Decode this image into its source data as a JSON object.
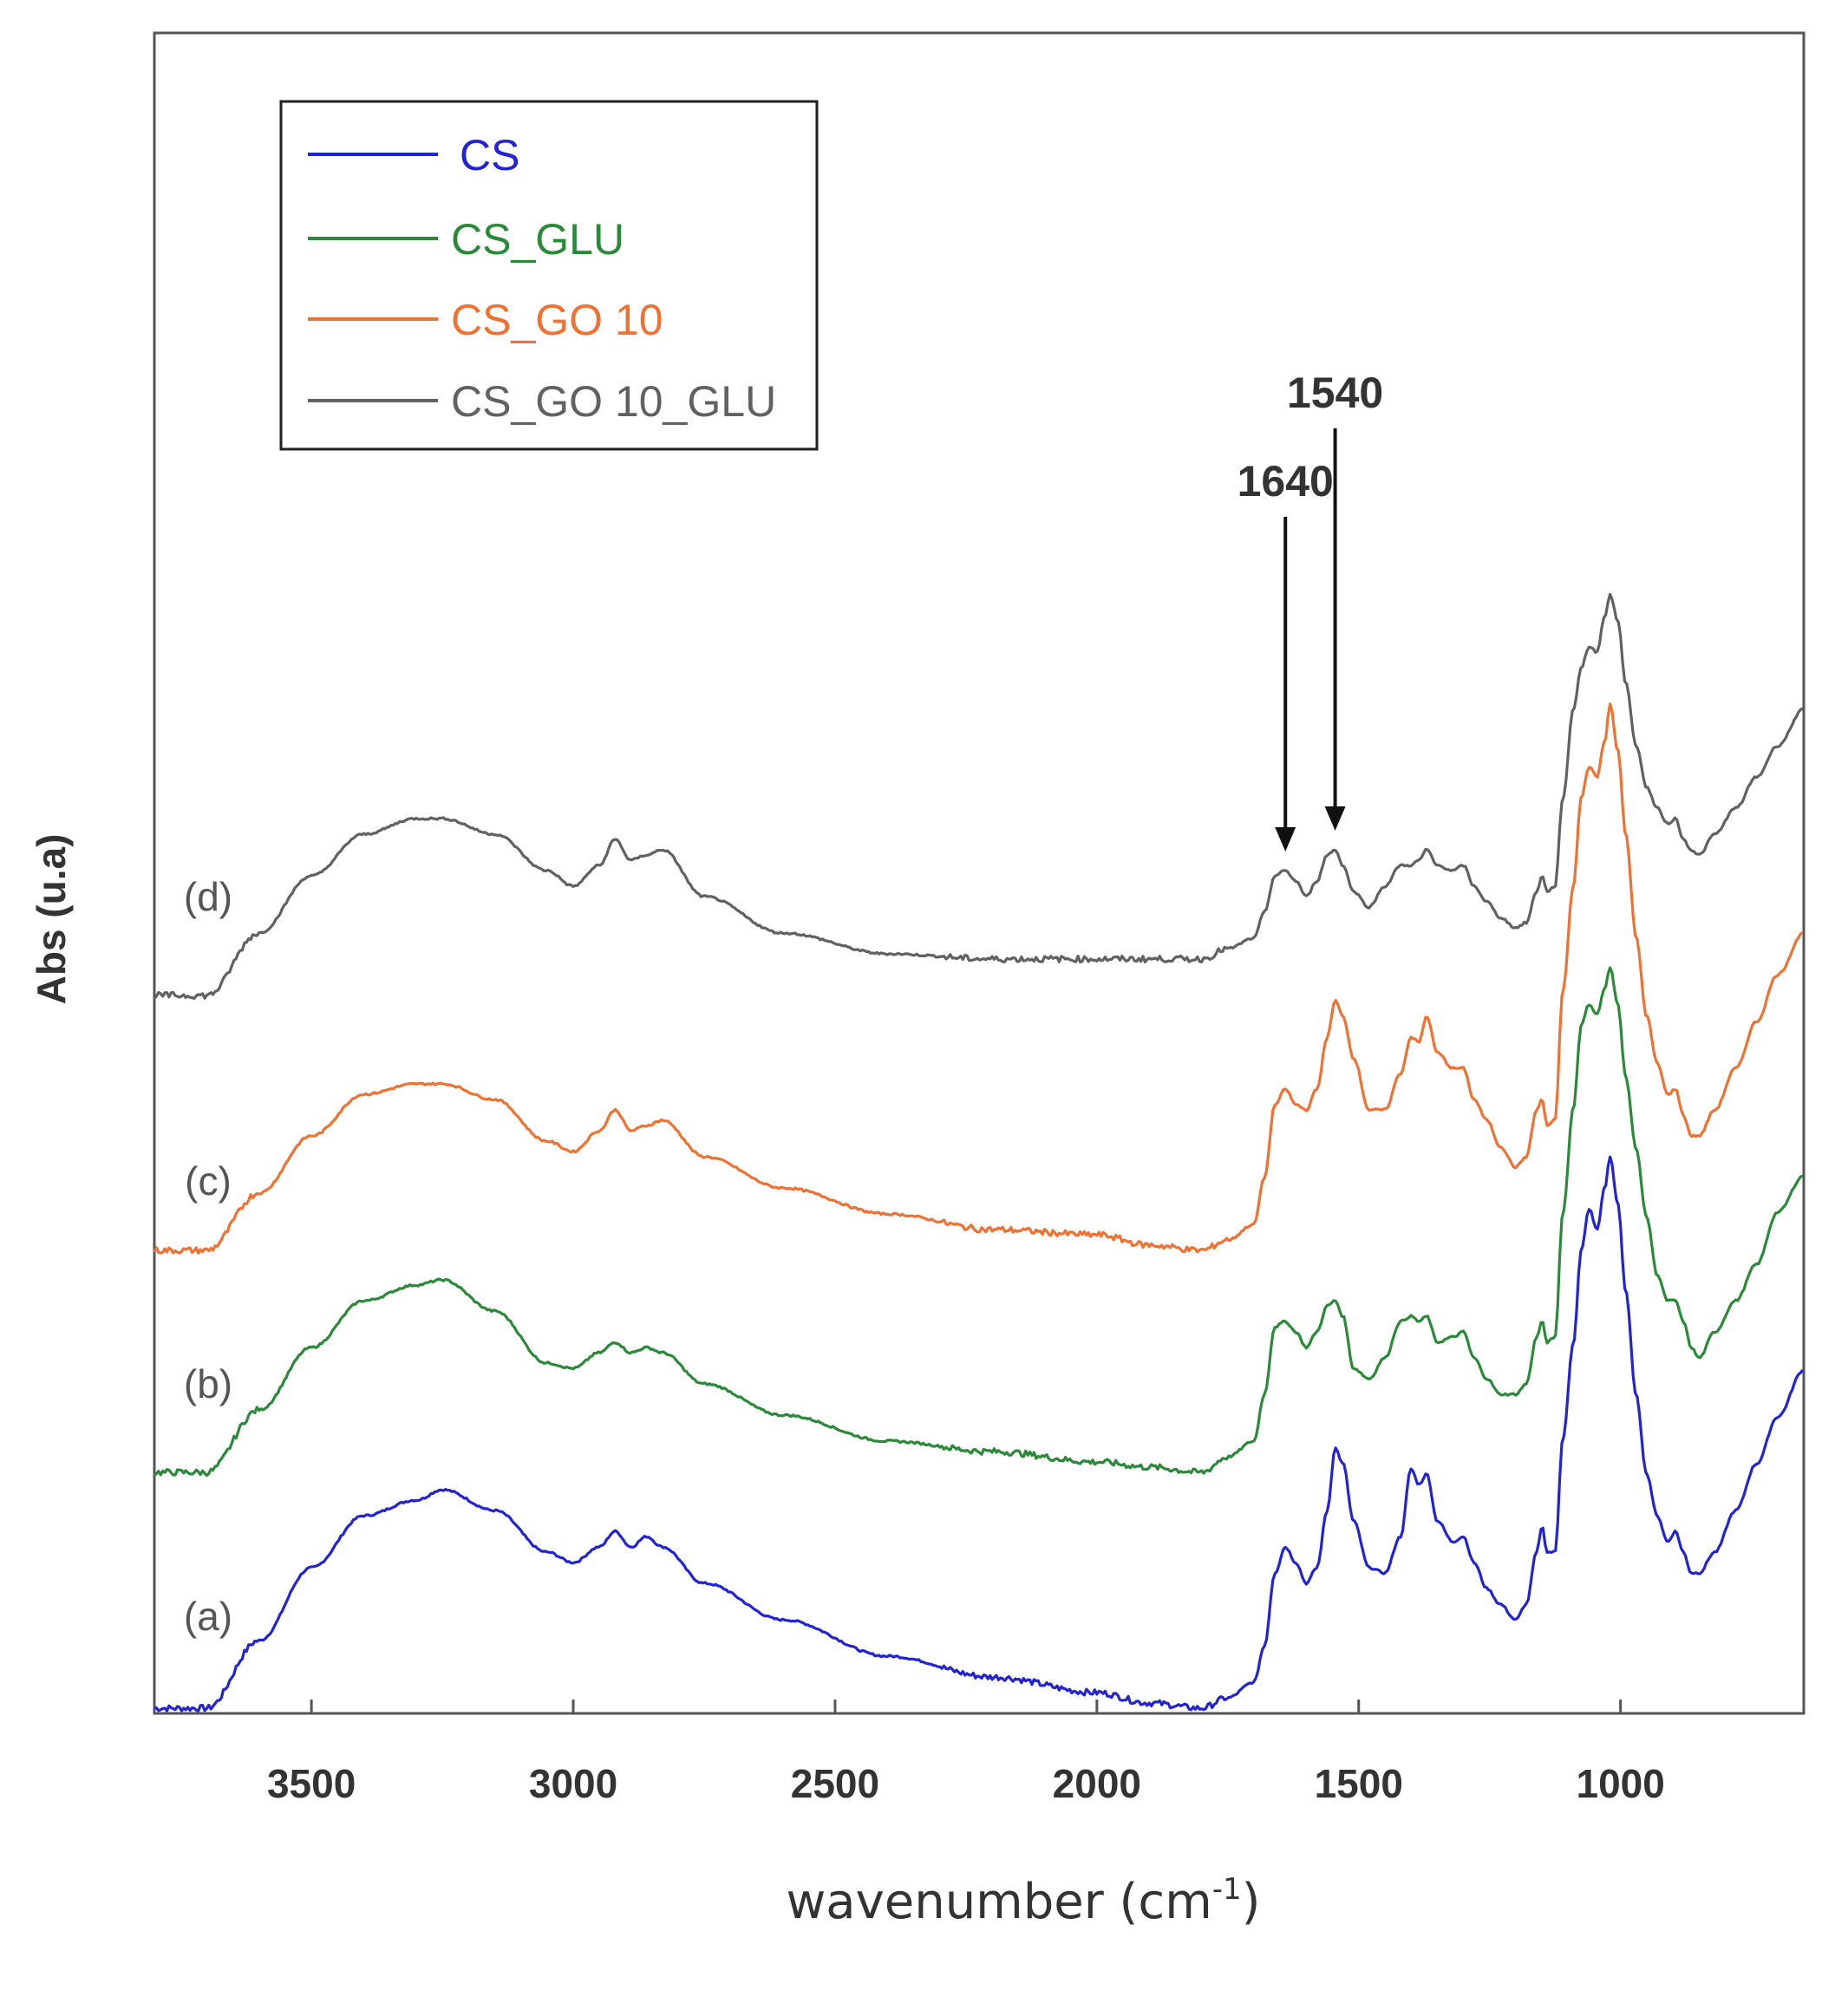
{
  "chart_data": {
    "type": "line",
    "title": "",
    "xlabel": "wavenumber (cm",
    "xlabel_sup": "-1",
    "xlabel_tail": ")",
    "ylabel": "Abs (u.a)",
    "xlim": [
      3800,
      650
    ],
    "x_reversed": true,
    "grid": false,
    "legend_position": "top-left",
    "x_ticks": [
      "3500",
      "3000",
      "2500",
      "2000",
      "1500",
      "1000"
    ],
    "x_tick_values": [
      3500,
      3000,
      2500,
      2000,
      1500,
      1000
    ],
    "series": [
      {
        "name": "CS",
        "label": "(a)",
        "color": "#2323d6",
        "offset": 0,
        "points": [
          [
            3800,
            0.0
          ],
          [
            3700,
            0.0
          ],
          [
            3600,
            0.13
          ],
          [
            3500,
            0.27
          ],
          [
            3400,
            0.37
          ],
          [
            3300,
            0.4
          ],
          [
            3250,
            0.42
          ],
          [
            3150,
            0.38
          ],
          [
            3050,
            0.3
          ],
          [
            3000,
            0.28
          ],
          [
            2950,
            0.31
          ],
          [
            2920,
            0.34
          ],
          [
            2890,
            0.31
          ],
          [
            2860,
            0.33
          ],
          [
            2830,
            0.31
          ],
          [
            2750,
            0.24
          ],
          [
            2600,
            0.17
          ],
          [
            2400,
            0.1
          ],
          [
            2200,
            0.06
          ],
          [
            2000,
            0.03
          ],
          [
            1900,
            0.01
          ],
          [
            1800,
            0.0
          ],
          [
            1750,
            0.02
          ],
          [
            1700,
            0.05
          ],
          [
            1680,
            0.12
          ],
          [
            1660,
            0.26
          ],
          [
            1640,
            0.31
          ],
          [
            1620,
            0.28
          ],
          [
            1600,
            0.24
          ],
          [
            1580,
            0.27
          ],
          [
            1560,
            0.38
          ],
          [
            1545,
            0.5
          ],
          [
            1530,
            0.47
          ],
          [
            1510,
            0.36
          ],
          [
            1480,
            0.27
          ],
          [
            1450,
            0.26
          ],
          [
            1420,
            0.33
          ],
          [
            1400,
            0.46
          ],
          [
            1385,
            0.43
          ],
          [
            1370,
            0.45
          ],
          [
            1350,
            0.36
          ],
          [
            1320,
            0.32
          ],
          [
            1300,
            0.33
          ],
          [
            1280,
            0.28
          ],
          [
            1255,
            0.23
          ],
          [
            1230,
            0.2
          ],
          [
            1200,
            0.17
          ],
          [
            1180,
            0.2
          ],
          [
            1160,
            0.3
          ],
          [
            1150,
            0.35
          ],
          [
            1140,
            0.3
          ],
          [
            1125,
            0.3
          ],
          [
            1110,
            0.52
          ],
          [
            1090,
            0.7
          ],
          [
            1075,
            0.88
          ],
          [
            1060,
            0.96
          ],
          [
            1045,
            0.92
          ],
          [
            1030,
            1.0
          ],
          [
            1020,
            1.06
          ],
          [
            1005,
            0.97
          ],
          [
            990,
            0.8
          ],
          [
            970,
            0.6
          ],
          [
            950,
            0.45
          ],
          [
            930,
            0.37
          ],
          [
            910,
            0.32
          ],
          [
            895,
            0.34
          ],
          [
            880,
            0.3
          ],
          [
            865,
            0.26
          ],
          [
            850,
            0.26
          ],
          [
            820,
            0.3
          ],
          [
            780,
            0.38
          ],
          [
            740,
            0.47
          ],
          [
            700,
            0.56
          ],
          [
            650,
            0.65
          ]
        ]
      },
      {
        "name": "CS_GLU",
        "label": "(b)",
        "color": "#2b8a3a",
        "offset": 0.2,
        "points": [
          [
            3800,
            0.0
          ],
          [
            3700,
            0.0
          ],
          [
            3600,
            0.12
          ],
          [
            3500,
            0.24
          ],
          [
            3400,
            0.33
          ],
          [
            3300,
            0.36
          ],
          [
            3250,
            0.37
          ],
          [
            3150,
            0.31
          ],
          [
            3050,
            0.21
          ],
          [
            3000,
            0.2
          ],
          [
            2950,
            0.23
          ],
          [
            2920,
            0.25
          ],
          [
            2890,
            0.23
          ],
          [
            2860,
            0.24
          ],
          [
            2830,
            0.23
          ],
          [
            2750,
            0.17
          ],
          [
            2600,
            0.11
          ],
          [
            2400,
            0.06
          ],
          [
            2200,
            0.04
          ],
          [
            2000,
            0.02
          ],
          [
            1900,
            0.01
          ],
          [
            1800,
            0.0
          ],
          [
            1750,
            0.03
          ],
          [
            1700,
            0.06
          ],
          [
            1680,
            0.15
          ],
          [
            1660,
            0.28
          ],
          [
            1640,
            0.29
          ],
          [
            1620,
            0.27
          ],
          [
            1600,
            0.24
          ],
          [
            1580,
            0.27
          ],
          [
            1560,
            0.32
          ],
          [
            1545,
            0.33
          ],
          [
            1530,
            0.3
          ],
          [
            1510,
            0.2
          ],
          [
            1480,
            0.18
          ],
          [
            1450,
            0.22
          ],
          [
            1420,
            0.29
          ],
          [
            1400,
            0.3
          ],
          [
            1385,
            0.29
          ],
          [
            1370,
            0.3
          ],
          [
            1350,
            0.25
          ],
          [
            1320,
            0.26
          ],
          [
            1300,
            0.27
          ],
          [
            1280,
            0.22
          ],
          [
            1255,
            0.18
          ],
          [
            1230,
            0.15
          ],
          [
            1200,
            0.15
          ],
          [
            1180,
            0.17
          ],
          [
            1160,
            0.26
          ],
          [
            1150,
            0.29
          ],
          [
            1140,
            0.25
          ],
          [
            1125,
            0.26
          ],
          [
            1110,
            0.5
          ],
          [
            1090,
            0.7
          ],
          [
            1075,
            0.86
          ],
          [
            1060,
            0.9
          ],
          [
            1045,
            0.88
          ],
          [
            1030,
            0.93
          ],
          [
            1020,
            0.97
          ],
          [
            1005,
            0.9
          ],
          [
            990,
            0.76
          ],
          [
            970,
            0.62
          ],
          [
            950,
            0.49
          ],
          [
            930,
            0.38
          ],
          [
            910,
            0.33
          ],
          [
            895,
            0.33
          ],
          [
            880,
            0.29
          ],
          [
            865,
            0.24
          ],
          [
            850,
            0.22
          ],
          [
            820,
            0.27
          ],
          [
            780,
            0.33
          ],
          [
            740,
            0.4
          ],
          [
            700,
            0.5
          ],
          [
            650,
            0.57
          ]
        ]
      },
      {
        "name": "CS_GO 10",
        "label": "(c)",
        "color": "#f07233",
        "offset": 0.46,
        "points": [
          [
            3800,
            0.0
          ],
          [
            3700,
            0.0
          ],
          [
            3600,
            0.11
          ],
          [
            3500,
            0.22
          ],
          [
            3400,
            0.3
          ],
          [
            3300,
            0.32
          ],
          [
            3250,
            0.32
          ],
          [
            3150,
            0.29
          ],
          [
            3050,
            0.21
          ],
          [
            3000,
            0.19
          ],
          [
            2950,
            0.23
          ],
          [
            2920,
            0.27
          ],
          [
            2890,
            0.23
          ],
          [
            2860,
            0.24
          ],
          [
            2830,
            0.25
          ],
          [
            2750,
            0.18
          ],
          [
            2600,
            0.12
          ],
          [
            2400,
            0.07
          ],
          [
            2200,
            0.04
          ],
          [
            2000,
            0.03
          ],
          [
            1900,
            0.01
          ],
          [
            1800,
            0.0
          ],
          [
            1750,
            0.02
          ],
          [
            1700,
            0.05
          ],
          [
            1680,
            0.14
          ],
          [
            1660,
            0.28
          ],
          [
            1640,
            0.31
          ],
          [
            1620,
            0.28
          ],
          [
            1600,
            0.27
          ],
          [
            1580,
            0.31
          ],
          [
            1560,
            0.41
          ],
          [
            1545,
            0.48
          ],
          [
            1530,
            0.45
          ],
          [
            1510,
            0.37
          ],
          [
            1480,
            0.27
          ],
          [
            1450,
            0.27
          ],
          [
            1420,
            0.34
          ],
          [
            1400,
            0.41
          ],
          [
            1385,
            0.4
          ],
          [
            1370,
            0.45
          ],
          [
            1350,
            0.38
          ],
          [
            1320,
            0.35
          ],
          [
            1300,
            0.35
          ],
          [
            1280,
            0.29
          ],
          [
            1255,
            0.25
          ],
          [
            1230,
            0.2
          ],
          [
            1200,
            0.16
          ],
          [
            1180,
            0.18
          ],
          [
            1160,
            0.27
          ],
          [
            1150,
            0.29
          ],
          [
            1140,
            0.24
          ],
          [
            1125,
            0.25
          ],
          [
            1110,
            0.5
          ],
          [
            1090,
            0.7
          ],
          [
            1075,
            0.87
          ],
          [
            1060,
            0.93
          ],
          [
            1045,
            0.91
          ],
          [
            1030,
            0.98
          ],
          [
            1020,
            1.05
          ],
          [
            1005,
            0.96
          ],
          [
            990,
            0.8
          ],
          [
            970,
            0.6
          ],
          [
            950,
            0.45
          ],
          [
            930,
            0.36
          ],
          [
            910,
            0.3
          ],
          [
            895,
            0.31
          ],
          [
            880,
            0.26
          ],
          [
            865,
            0.22
          ],
          [
            850,
            0.22
          ],
          [
            820,
            0.27
          ],
          [
            780,
            0.35
          ],
          [
            740,
            0.44
          ],
          [
            700,
            0.53
          ],
          [
            650,
            0.61
          ]
        ]
      },
      {
        "name": "CS_GO 10_GLU",
        "label": "(d)",
        "color": "#616161",
        "offset": 0.73,
        "points": [
          [
            3800,
            0.0
          ],
          [
            3700,
            0.0
          ],
          [
            3600,
            0.12
          ],
          [
            3500,
            0.23
          ],
          [
            3400,
            0.31
          ],
          [
            3300,
            0.34
          ],
          [
            3250,
            0.34
          ],
          [
            3150,
            0.31
          ],
          [
            3050,
            0.24
          ],
          [
            3000,
            0.21
          ],
          [
            2950,
            0.25
          ],
          [
            2920,
            0.3
          ],
          [
            2890,
            0.26
          ],
          [
            2860,
            0.27
          ],
          [
            2830,
            0.28
          ],
          [
            2750,
            0.19
          ],
          [
            2600,
            0.12
          ],
          [
            2400,
            0.08
          ],
          [
            2200,
            0.07
          ],
          [
            2000,
            0.07
          ],
          [
            1900,
            0.07
          ],
          [
            1800,
            0.07
          ],
          [
            1750,
            0.09
          ],
          [
            1700,
            0.11
          ],
          [
            1680,
            0.16
          ],
          [
            1660,
            0.23
          ],
          [
            1640,
            0.24
          ],
          [
            1620,
            0.22
          ],
          [
            1600,
            0.19
          ],
          [
            1580,
            0.22
          ],
          [
            1560,
            0.27
          ],
          [
            1545,
            0.28
          ],
          [
            1530,
            0.25
          ],
          [
            1510,
            0.2
          ],
          [
            1480,
            0.17
          ],
          [
            1450,
            0.21
          ],
          [
            1420,
            0.25
          ],
          [
            1400,
            0.25
          ],
          [
            1385,
            0.26
          ],
          [
            1370,
            0.28
          ],
          [
            1350,
            0.25
          ],
          [
            1320,
            0.24
          ],
          [
            1300,
            0.25
          ],
          [
            1280,
            0.21
          ],
          [
            1255,
            0.18
          ],
          [
            1230,
            0.15
          ],
          [
            1200,
            0.13
          ],
          [
            1180,
            0.14
          ],
          [
            1160,
            0.2
          ],
          [
            1150,
            0.23
          ],
          [
            1140,
            0.2
          ],
          [
            1125,
            0.21
          ],
          [
            1110,
            0.38
          ],
          [
            1090,
            0.55
          ],
          [
            1075,
            0.63
          ],
          [
            1060,
            0.67
          ],
          [
            1045,
            0.66
          ],
          [
            1030,
            0.73
          ],
          [
            1020,
            0.77
          ],
          [
            1005,
            0.72
          ],
          [
            990,
            0.6
          ],
          [
            970,
            0.48
          ],
          [
            950,
            0.4
          ],
          [
            930,
            0.36
          ],
          [
            910,
            0.33
          ],
          [
            895,
            0.34
          ],
          [
            880,
            0.3
          ],
          [
            865,
            0.28
          ],
          [
            850,
            0.27
          ],
          [
            820,
            0.31
          ],
          [
            780,
            0.36
          ],
          [
            740,
            0.42
          ],
          [
            700,
            0.48
          ],
          [
            650,
            0.55
          ]
        ]
      }
    ],
    "annotations": [
      {
        "text": "1640",
        "x": 1640,
        "series": "CS_GO 10_GLU"
      },
      {
        "text": "1540",
        "x": 1545,
        "series": "CS_GO 10_GLU"
      }
    ]
  },
  "legend": {
    "items": [
      {
        "label": "CS",
        "color": "#2323d6"
      },
      {
        "label": "CS_GLU",
        "color": "#2b8a3a"
      },
      {
        "label": "CS_GO 10",
        "color": "#f07233"
      },
      {
        "label": "CS_GO 10_GLU",
        "color": "#616161"
      }
    ]
  }
}
